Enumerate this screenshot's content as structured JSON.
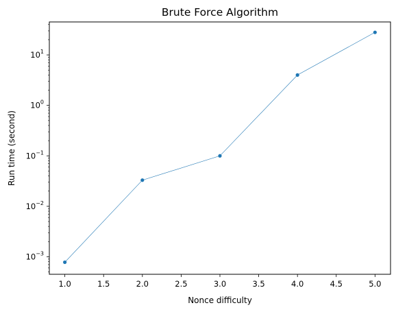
{
  "chart_data": {
    "type": "line",
    "title": "Brute Force Algorithm",
    "xlabel": "Nonce difficulty",
    "ylabel": "Run time (second)",
    "yscale": "log",
    "x": [
      1.0,
      2.0,
      3.0,
      4.0,
      5.0
    ],
    "series": [
      {
        "values": [
          0.00078,
          0.033,
          0.1,
          4.0,
          28.0
        ],
        "color": "#1f77b4"
      }
    ],
    "xlim": [
      0.8,
      5.2
    ],
    "ylim": [
      0.00045,
      45
    ],
    "xticks": [
      1.0,
      1.5,
      2.0,
      2.5,
      3.0,
      3.5,
      4.0,
      4.5,
      5.0
    ],
    "xtick_labels": [
      "1.0",
      "1.5",
      "2.0",
      "2.5",
      "3.0",
      "3.5",
      "4.0",
      "4.5",
      "5.0"
    ],
    "yticks_major": [
      0.001,
      0.01,
      0.1,
      1,
      10
    ],
    "ytick_labels": [
      {
        "base": "10",
        "exp": "−3"
      },
      {
        "base": "10",
        "exp": "−2"
      },
      {
        "base": "10",
        "exp": "−1"
      },
      {
        "base": "10",
        "exp": "0"
      },
      {
        "base": "10",
        "exp": "1"
      }
    ],
    "grid": false,
    "legend": "none"
  }
}
